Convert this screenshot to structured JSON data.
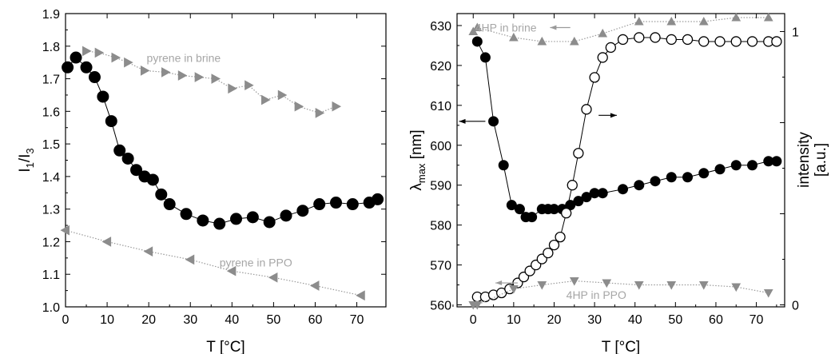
{
  "chart_data": [
    {
      "type": "scatter",
      "xlabel": "T [°C]",
      "ylabel_main": "I",
      "ylabel_sub1": "1",
      "ylabel_slash": "/I",
      "ylabel_sub2": "3",
      "xlim": [
        0,
        77
      ],
      "ylim": [
        1.0,
        1.9
      ],
      "xticks": [
        "0",
        "10",
        "20",
        "30",
        "40",
        "50",
        "60",
        "70"
      ],
      "yticks": [
        "1.0",
        "1.1",
        "1.2",
        "1.3",
        "1.4",
        "1.5",
        "1.6",
        "1.7",
        "1.8",
        "1.9"
      ],
      "annotations": [
        "pyrene in brine",
        "pyrene in PPO"
      ],
      "series": [
        {
          "marker": "filled-circle",
          "color": "#000000",
          "x": [
            0.5,
            2.5,
            5,
            7,
            9,
            11,
            13,
            15,
            17,
            19,
            21,
            23,
            25,
            29,
            33,
            37,
            41,
            45,
            49,
            53,
            57,
            61,
            65,
            69,
            73,
            75
          ],
          "y": [
            1.735,
            1.765,
            1.735,
            1.705,
            1.645,
            1.57,
            1.48,
            1.455,
            1.42,
            1.4,
            1.39,
            1.345,
            1.315,
            1.285,
            1.265,
            1.255,
            1.27,
            1.275,
            1.26,
            1.28,
            1.295,
            1.315,
            1.32,
            1.315,
            1.32,
            1.33
          ]
        },
        {
          "name": "pyrene in brine",
          "marker": "triangle-right",
          "color": "#8c8c8c",
          "x": [
            5,
            8,
            12,
            15,
            19,
            24,
            28,
            32,
            36,
            40,
            44,
            48,
            52,
            56,
            61,
            65
          ],
          "y": [
            1.785,
            1.78,
            1.765,
            1.75,
            1.725,
            1.72,
            1.71,
            1.705,
            1.7,
            1.67,
            1.68,
            1.635,
            1.65,
            1.615,
            1.595,
            1.615
          ]
        },
        {
          "name": "pyrene in PPO",
          "marker": "triangle-left",
          "color": "#8c8c8c",
          "x": [
            0,
            10,
            20,
            30,
            40,
            50,
            60,
            71
          ],
          "y": [
            1.235,
            1.2,
            1.17,
            1.145,
            1.11,
            1.09,
            1.065,
            1.035
          ]
        }
      ]
    },
    {
      "type": "scatter",
      "xlabel": "T [°C]",
      "ylabel_main": "λ",
      "ylabel_sub": "max",
      "ylabel_unit": " [nm]",
      "ylabel_right_1": "intensity",
      "ylabel_right_2": "[a.u.]",
      "xlim": [
        -4,
        77
      ],
      "ylim": [
        559.5,
        633
      ],
      "xticks": [
        "0",
        "10",
        "20",
        "30",
        "40",
        "50",
        "60",
        "70"
      ],
      "yticks": [
        "560",
        "570",
        "580",
        "590",
        "600",
        "610",
        "620",
        "630"
      ],
      "yticks_right": [
        "0",
        "1"
      ],
      "annotations": [
        "4HP in brine",
        "4HP in PPO"
      ],
      "series": [
        {
          "marker": "filled-circle",
          "color": "#000000",
          "x": [
            1,
            3,
            5,
            7.5,
            9.5,
            11.5,
            13,
            14.5,
            17,
            18.5,
            20,
            22,
            24,
            26,
            28,
            30,
            32,
            37,
            41,
            45,
            49,
            53,
            57,
            61,
            65,
            69,
            73,
            75
          ],
          "y": [
            626,
            622,
            606,
            595,
            585,
            584,
            582,
            582,
            584,
            584,
            584,
            584,
            585,
            586,
            587,
            588,
            588,
            589,
            590,
            591,
            592,
            592,
            593,
            594,
            595,
            595,
            596,
            596
          ]
        },
        {
          "marker": "open-circle",
          "color": "#000000",
          "x": [
            1,
            3,
            5,
            7,
            9,
            11,
            12.5,
            14,
            15.5,
            17,
            18.5,
            20,
            21.5,
            23,
            24.5,
            26,
            28,
            30,
            32,
            34,
            37,
            41,
            45,
            49,
            53,
            57,
            61,
            65,
            69,
            73,
            75
          ],
          "y": [
            562,
            562,
            562.5,
            563,
            564,
            565.5,
            567,
            568.5,
            570,
            571.5,
            573,
            575,
            577,
            583,
            590,
            598,
            609,
            617,
            622,
            624.5,
            626.5,
            627,
            627,
            626.5,
            626.5,
            626,
            626,
            626,
            626,
            626,
            626
          ]
        },
        {
          "name": "4HP in brine",
          "marker": "triangle-up",
          "color": "#8c8c8c",
          "x": [
            0,
            1,
            10,
            17,
            25,
            32,
            41,
            49,
            57,
            65,
            73
          ],
          "y": [
            628.5,
            629.5,
            627,
            626,
            626,
            628,
            631,
            631,
            631,
            632,
            632
          ]
        },
        {
          "name": "4HP in PPO",
          "marker": "triangle-down",
          "color": "#8c8c8c",
          "x": [
            0,
            1,
            10,
            17,
            25,
            33,
            41,
            49,
            57,
            65,
            73
          ],
          "y": [
            560,
            560,
            564,
            565,
            566,
            565.5,
            565,
            565,
            565,
            564.5,
            563
          ]
        }
      ]
    }
  ]
}
